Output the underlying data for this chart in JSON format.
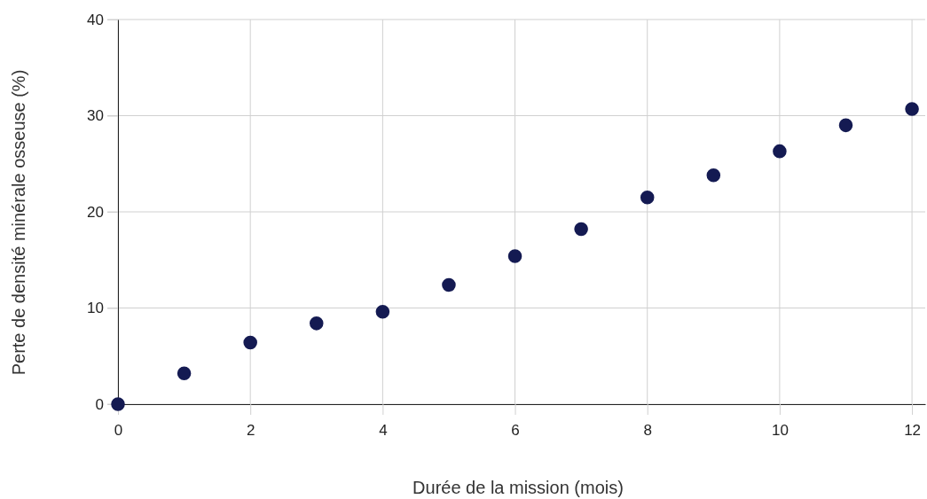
{
  "chart_data": {
    "type": "scatter",
    "xlabel": "Durée de la mission (mois)",
    "ylabel": "Perte de densité minérale osseuse (%)",
    "x": [
      0,
      1,
      2,
      3,
      4,
      5,
      6,
      7,
      8,
      9,
      10,
      11,
      12
    ],
    "values": [
      0,
      3.2,
      6.4,
      8.4,
      9.6,
      12.4,
      15.4,
      18.2,
      21.5,
      23.8,
      26.3,
      29.0,
      30.7
    ],
    "color": "#141a52",
    "marker": "circle",
    "grid": true,
    "xlim": [
      0,
      12.2
    ],
    "xticks": [
      0,
      2,
      4,
      6,
      8,
      10,
      12
    ],
    "ylim": [
      0,
      40
    ],
    "yticks": [
      0,
      10,
      20,
      30,
      40
    ]
  }
}
